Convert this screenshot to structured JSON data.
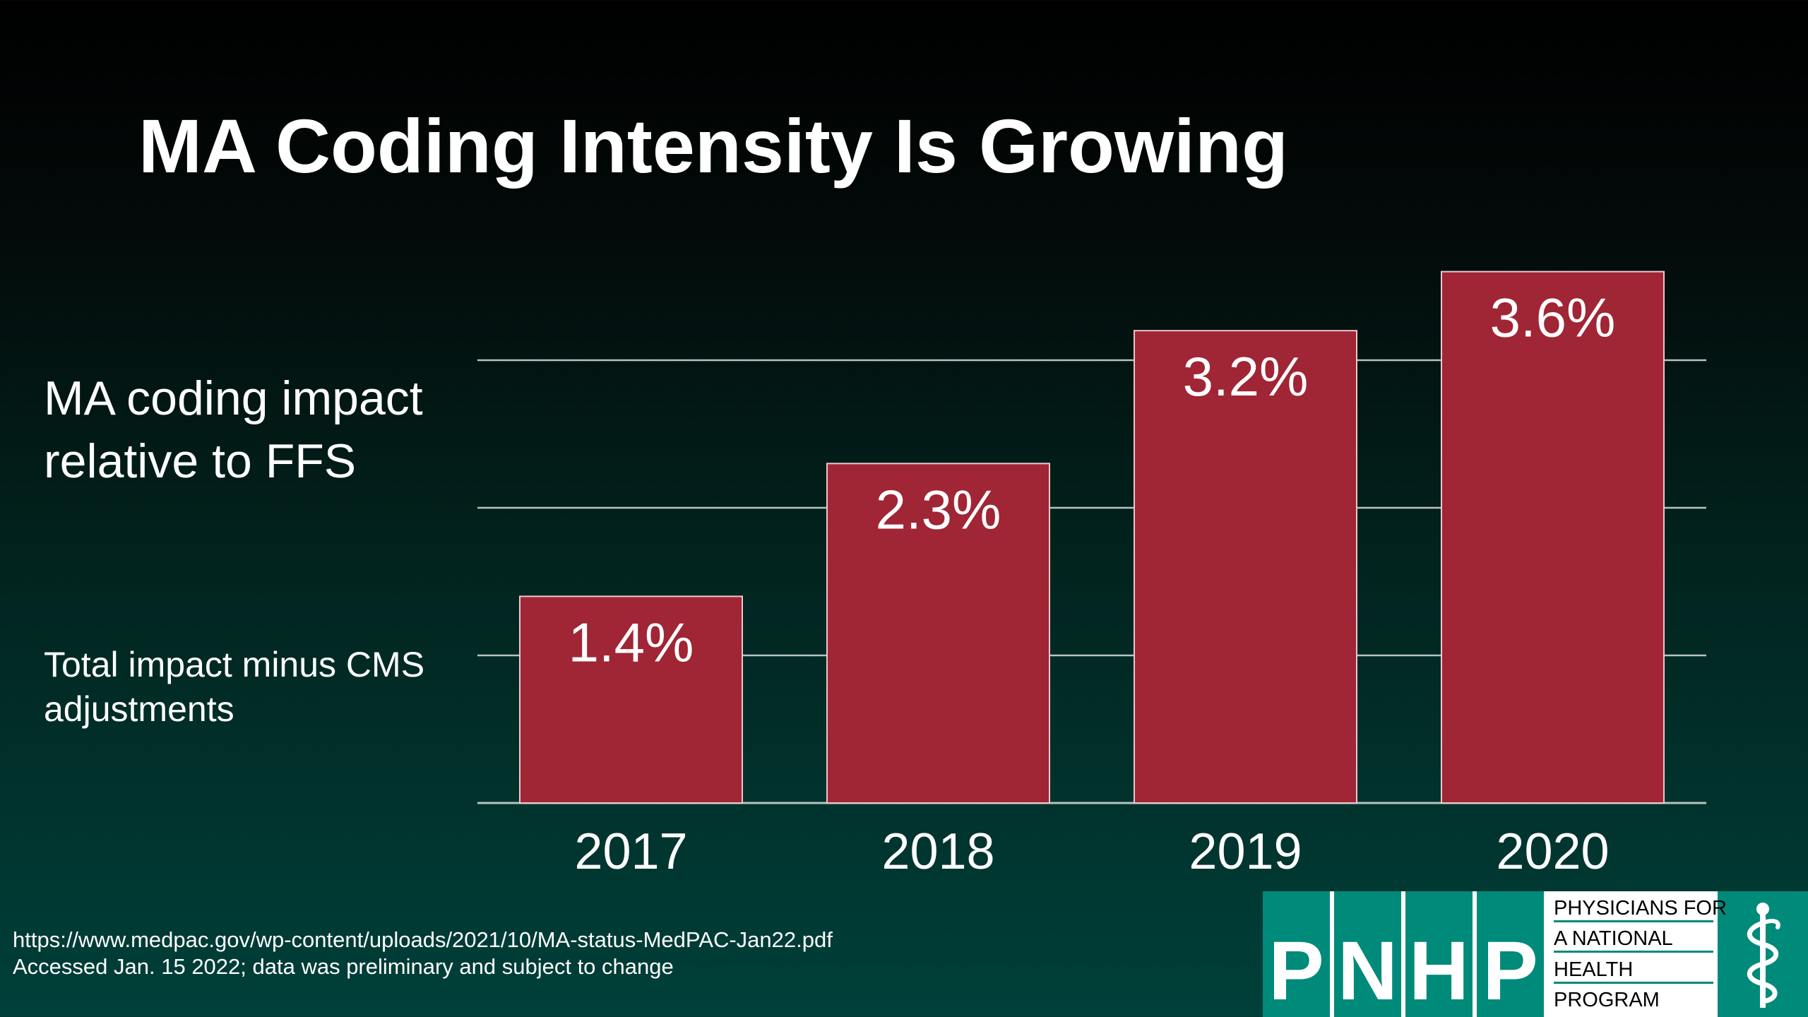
{
  "slide": {
    "title": "MA Coding Intensity Is Growing",
    "side_label": "MA coding impact relative to FFS",
    "side_sub": "Total impact minus CMS adjustments",
    "footnote_url": "https://www.medpac.gov/wp-content/uploads/2021/10/MA-status-MedPAC-Jan22.pdf",
    "footnote_note": "Accessed Jan. 15 2022; data was preliminary and subject to change"
  },
  "logo": {
    "letters": [
      "P",
      "N",
      "H",
      "P"
    ],
    "text_lines": [
      "PHYSICIANS FOR",
      "A NATIONAL",
      "HEALTH",
      "PROGRAM"
    ],
    "icon": "caduceus-icon",
    "bg_color": "#008a7a"
  },
  "colors": {
    "bar": "#a02535",
    "bar_border": "#e9c9cd",
    "gridline": "#b7c2bf"
  },
  "chart_data": {
    "type": "bar",
    "categories": [
      "2017",
      "2018",
      "2019",
      "2020"
    ],
    "values": [
      1.4,
      2.3,
      3.2,
      3.6
    ],
    "value_labels": [
      "1.4%",
      "2.3%",
      "3.2%",
      "3.6%"
    ],
    "title": "MA Coding Intensity Is Growing",
    "ylabel": "",
    "xlabel": "",
    "ylim": [
      0,
      3.0
    ],
    "yticks": [
      0,
      1.0,
      2.0,
      3.0
    ],
    "ytick_labels_shown": false,
    "grid": true,
    "legend": "none"
  }
}
